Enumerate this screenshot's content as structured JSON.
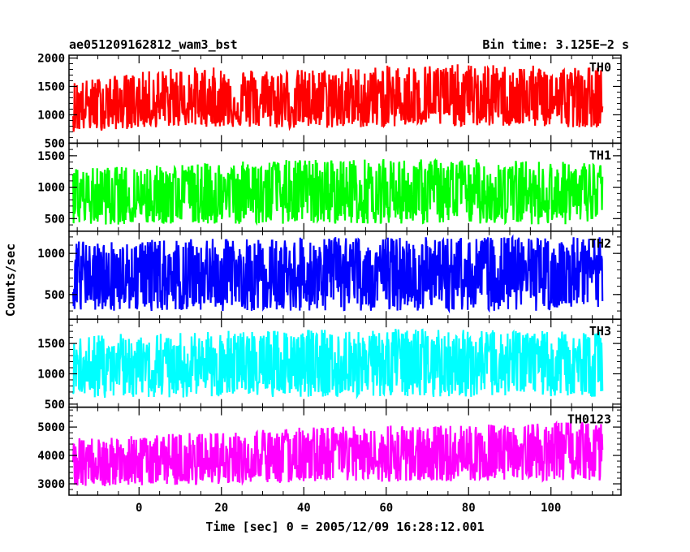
{
  "header": {
    "title": "ae051209162812_wam3_bst",
    "bin_time": "Bin time: 3.125E−2 s"
  },
  "axes": {
    "ylabel": "Counts/sec",
    "xlabel": "Time [sec] 0 = 2005/12/09 16:28:12.001",
    "x_ticks": [
      0,
      20,
      40,
      60,
      80,
      100
    ],
    "x_tick_labels": [
      "0",
      "20",
      "40",
      "60",
      "80",
      "100"
    ],
    "xlim": [
      -17,
      117
    ]
  },
  "chart_data": {
    "type": "line",
    "title": "ae051209162812_wam3_bst",
    "xlabel": "Time [sec] 0 = 2005/12/09 16:28:12.001",
    "ylabel": "Counts/sec",
    "bin_time_s": 0.03125,
    "x_range": [
      -16,
      112.5
    ],
    "xlim": [
      -17,
      117
    ],
    "panels": [
      {
        "name": "TH0",
        "color": "#ff0000",
        "ylim": [
          500,
          2050
        ],
        "yticks": [
          500,
          1000,
          1500,
          2000
        ],
        "ytick_labels": [
          "500",
          "1000",
          "1500",
          "2000"
        ],
        "mean_start": 1150,
        "mean_end": 1250,
        "envelope": [
          {
            "x": -15,
            "min": 700,
            "max": 1600
          },
          {
            "x": 10,
            "min": 800,
            "max": 1850
          },
          {
            "x": 40,
            "min": 750,
            "max": 1800
          },
          {
            "x": 70,
            "min": 800,
            "max": 1900
          },
          {
            "x": 110,
            "min": 780,
            "max": 1850
          }
        ]
      },
      {
        "name": "TH1",
        "color": "#00ff00",
        "ylim": [
          300,
          1700
        ],
        "yticks": [
          500,
          1000,
          1500
        ],
        "ytick_labels": [
          "500",
          "1000",
          "1500"
        ],
        "mean_start": 850,
        "mean_end": 900,
        "envelope": [
          {
            "x": -15,
            "min": 400,
            "max": 1300
          },
          {
            "x": 40,
            "min": 420,
            "max": 1450
          },
          {
            "x": 80,
            "min": 420,
            "max": 1450
          },
          {
            "x": 110,
            "min": 400,
            "max": 1400
          }
        ]
      },
      {
        "name": "TH2",
        "color": "#0000ff",
        "ylim": [
          200,
          1270
        ],
        "yticks": [
          500,
          1000
        ],
        "ytick_labels": [
          "500",
          "1000"
        ],
        "mean_start": 700,
        "mean_end": 720,
        "envelope": [
          {
            "x": -15,
            "min": 300,
            "max": 1150
          },
          {
            "x": 50,
            "min": 300,
            "max": 1200
          },
          {
            "x": 110,
            "min": 300,
            "max": 1200
          }
        ]
      },
      {
        "name": "TH3",
        "color": "#00ffff",
        "ylim": [
          450,
          1900
        ],
        "yticks": [
          500,
          1000,
          1500
        ],
        "ytick_labels": [
          "500",
          "1000",
          "1500"
        ],
        "mean_start": 1100,
        "mean_end": 1150,
        "envelope": [
          {
            "x": -15,
            "min": 600,
            "max": 1650
          },
          {
            "x": 50,
            "min": 620,
            "max": 1750
          },
          {
            "x": 110,
            "min": 620,
            "max": 1700
          }
        ]
      },
      {
        "name": "TH0123",
        "color": "#ff00ff",
        "ylim": [
          2600,
          5700
        ],
        "yticks": [
          3000,
          4000,
          5000
        ],
        "ytick_labels": [
          "3000",
          "4000",
          "5000"
        ],
        "mean_start": 3700,
        "mean_end": 4050,
        "envelope": [
          {
            "x": -15,
            "min": 2900,
            "max": 4600
          },
          {
            "x": 40,
            "min": 3000,
            "max": 5000
          },
          {
            "x": 80,
            "min": 3100,
            "max": 5100
          },
          {
            "x": 110,
            "min": 3100,
            "max": 5200
          }
        ]
      }
    ]
  }
}
